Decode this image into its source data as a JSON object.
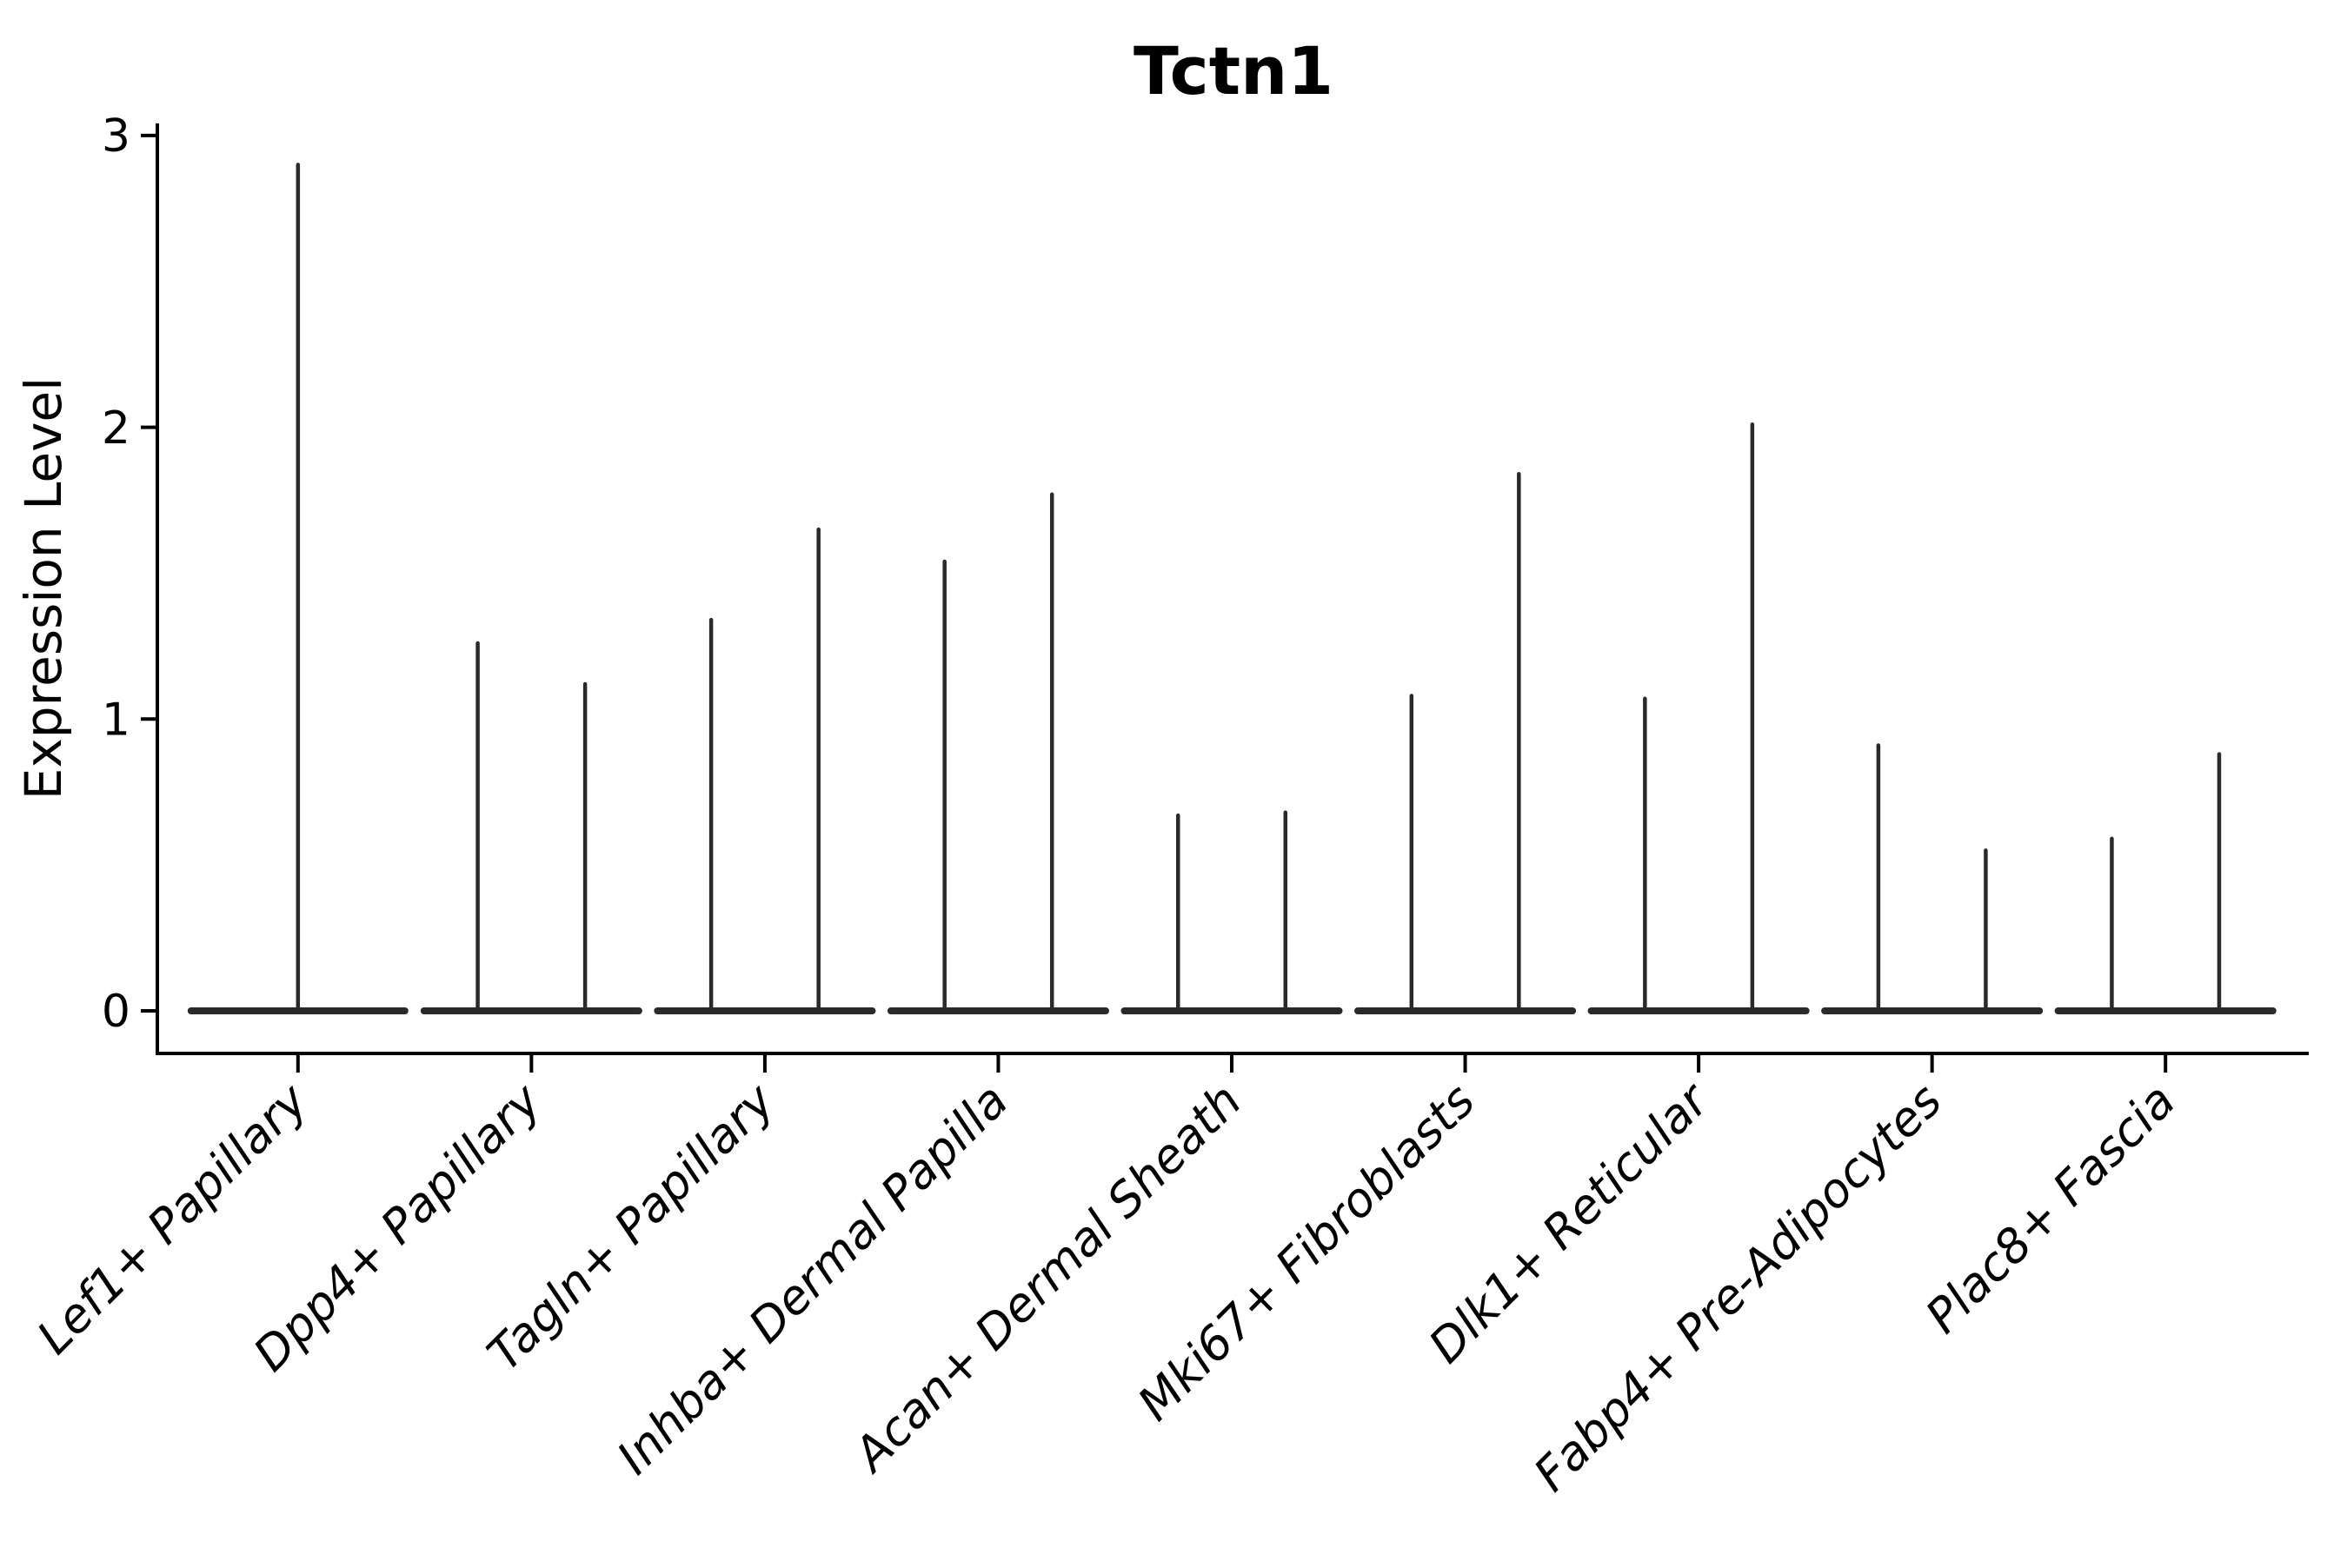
{
  "figure": {
    "background_color": "#ffffff",
    "axis_color": "#000000",
    "violin_color": "#2a2a2a"
  },
  "chart_data": {
    "type": "violin",
    "title": "Tctn1",
    "xlabel": "",
    "ylabel": "Expression Level",
    "ylim": [
      0,
      3
    ],
    "yticks": [
      0,
      1,
      2,
      3
    ],
    "grid": false,
    "legend": "none",
    "x_tick_rotation_deg": 45,
    "x_tick_style": "italic",
    "description": "Violin plot of Tctn1 expression; expression is concentrated at 0 (wide flat violin bases) with thin density spikes reaching the maximum expressing cells. First category shows one full-width violin; all other categories show two dodged violins per category.",
    "categories": [
      "Lef1+ Papillary",
      "Dpp4+ Papillary",
      "Tagln+ Papillary",
      "Inhba+ Dermal Papilla",
      "Acan+ Dermal Sheath",
      "Mki67+ Fibroblasts",
      "Dlk1+ Reticular",
      "Fabp4+ Pre-Adipocytes",
      "Plac8+ Fascia"
    ],
    "baseline_value": 0,
    "violins": [
      {
        "category": "Lef1+ Papillary",
        "group_offsets": [
          0
        ],
        "max_expression": [
          2.9
        ]
      },
      {
        "category": "Dpp4+ Papillary",
        "group_offsets": [
          -0.23,
          0.23
        ],
        "max_expression": [
          1.26,
          1.12
        ]
      },
      {
        "category": "Tagln+ Papillary",
        "group_offsets": [
          -0.23,
          0.23
        ],
        "max_expression": [
          1.34,
          1.65
        ]
      },
      {
        "category": "Inhba+ Dermal Papilla",
        "group_offsets": [
          -0.23,
          0.23
        ],
        "max_expression": [
          1.54,
          1.77
        ]
      },
      {
        "category": "Acan+ Dermal Sheath",
        "group_offsets": [
          -0.23,
          0.23
        ],
        "max_expression": [
          0.67,
          0.68
        ]
      },
      {
        "category": "Mki67+ Fibroblasts",
        "group_offsets": [
          -0.23,
          0.23
        ],
        "max_expression": [
          1.08,
          1.84
        ]
      },
      {
        "category": "Dlk1+ Reticular",
        "group_offsets": [
          -0.23,
          0.23
        ],
        "max_expression": [
          1.07,
          2.01
        ]
      },
      {
        "category": "Fabp4+ Pre-Adipocytes",
        "group_offsets": [
          -0.23,
          0.23
        ],
        "max_expression": [
          0.91,
          0.55
        ]
      },
      {
        "category": "Plac8+ Fascia",
        "group_offsets": [
          -0.23,
          0.23
        ],
        "max_expression": [
          0.59,
          0.88
        ]
      }
    ]
  }
}
